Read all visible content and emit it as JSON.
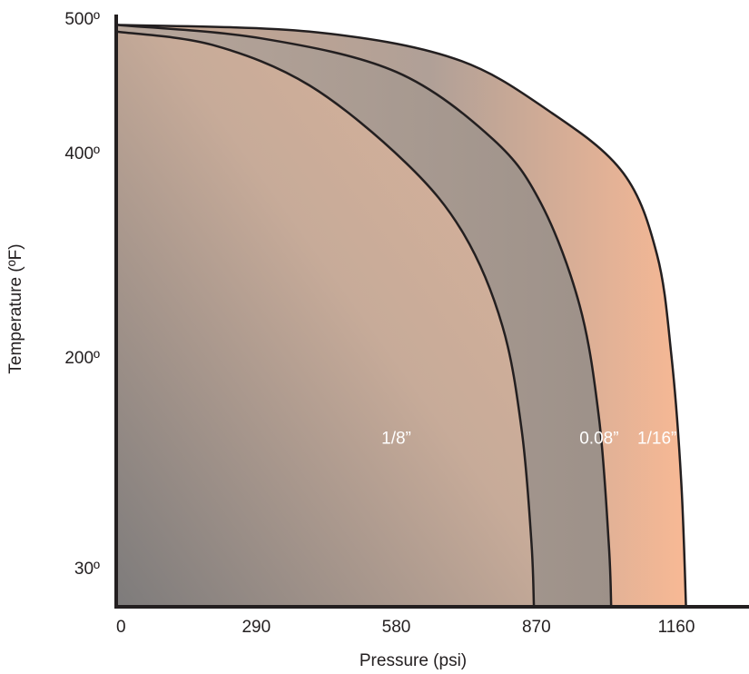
{
  "chart_data": {
    "type": "area",
    "title": "",
    "xlabel": "Pressure (psi)",
    "ylabel": "Temperature (ºF)",
    "x_ticks": [
      {
        "value": 0,
        "label": "0"
      },
      {
        "value": 290,
        "label": "290"
      },
      {
        "value": 580,
        "label": "580"
      },
      {
        "value": 870,
        "label": "870"
      },
      {
        "value": 1160,
        "label": "1160"
      }
    ],
    "y_ticks": [
      {
        "value": 30,
        "label": "30º"
      },
      {
        "value": 200,
        "label": "200º"
      },
      {
        "value": 400,
        "label": "400º"
      },
      {
        "value": 500,
        "label": "500º"
      }
    ],
    "y_scale": "uneven tick spacing (30º, 200º, 400º, 500º)",
    "grid": false,
    "legend": "labels placed inside regions",
    "series": [
      {
        "name": "1/16”",
        "color": "#f2b896",
        "points": [
          [
            0,
            495
          ],
          [
            400,
            490
          ],
          [
            700,
            470
          ],
          [
            900,
            430
          ],
          [
            1050,
            380
          ],
          [
            1120,
            300
          ],
          [
            1150,
            200
          ],
          [
            1170,
            100
          ],
          [
            1180,
            0
          ]
        ]
      },
      {
        "name": "0.08”",
        "color": "#a59890",
        "points": [
          [
            0,
            495
          ],
          [
            300,
            485
          ],
          [
            580,
            460
          ],
          [
            780,
            410
          ],
          [
            880,
            350
          ],
          [
            960,
            250
          ],
          [
            1000,
            150
          ],
          [
            1020,
            50
          ],
          [
            1025,
            0
          ]
        ]
      },
      {
        "name": "1/8”",
        "color": "#d1ad97",
        "points": [
          [
            0,
            490
          ],
          [
            200,
            480
          ],
          [
            400,
            450
          ],
          [
            600,
            390
          ],
          [
            720,
            320
          ],
          [
            800,
            230
          ],
          [
            840,
            140
          ],
          [
            860,
            50
          ],
          [
            865,
            0
          ]
        ]
      }
    ]
  }
}
